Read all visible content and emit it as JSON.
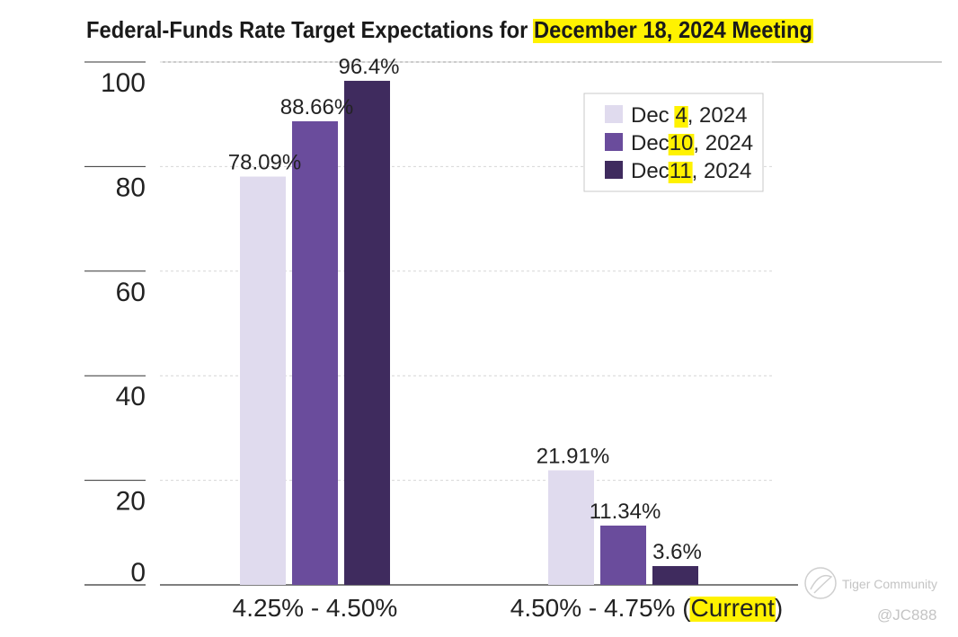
{
  "chart_data": {
    "type": "bar",
    "title": "Federal-Funds Rate Target Expectations for December 18, 2024 Meeting",
    "title_prefix": "Federal-Funds Rate Target Expectations for ",
    "title_highlight": "December 18, 2024 Meeting",
    "categories": [
      "4.25% - 4.50%",
      "4.50% - 4.75% (Current)"
    ],
    "category_parts": [
      {
        "before": "4.25% - 4.50%",
        "highlight": "",
        "after": ""
      },
      {
        "before": "4.50% - 4.75% (",
        "highlight": "Current",
        "after": ")"
      }
    ],
    "series": [
      {
        "name": "Dec 4, 2024",
        "name_prefix": "Dec ",
        "name_day": "4",
        "name_suffix": ", 2024",
        "color": "#e0dbee",
        "values": [
          78.09,
          21.91
        ],
        "labels": [
          "78.09%",
          "21.91%"
        ]
      },
      {
        "name": "Dec 10, 2024",
        "name_prefix": "Dec",
        "name_day": "10",
        "name_suffix": ", 2024",
        "color": "#6a4c9c",
        "values": [
          88.66,
          11.34
        ],
        "labels": [
          "88.66%",
          "11.34%"
        ]
      },
      {
        "name": "Dec 11, 2024",
        "name_prefix": "Dec",
        "name_day": "11",
        "name_suffix": ", 2024",
        "color": "#3f2b5e",
        "values": [
          96.4,
          3.6
        ],
        "labels": [
          "96.4%",
          "3.6%"
        ]
      }
    ],
    "yticks": [
      "0",
      "20",
      "40",
      "60",
      "80",
      "100"
    ],
    "ylim": [
      0,
      100
    ],
    "xlabel": "",
    "ylabel": "",
    "grid": true,
    "legend_position": "top-right",
    "highlight_color": "#fff200"
  },
  "watermark": {
    "brand": "Tiger Community",
    "user": "@JC888"
  }
}
